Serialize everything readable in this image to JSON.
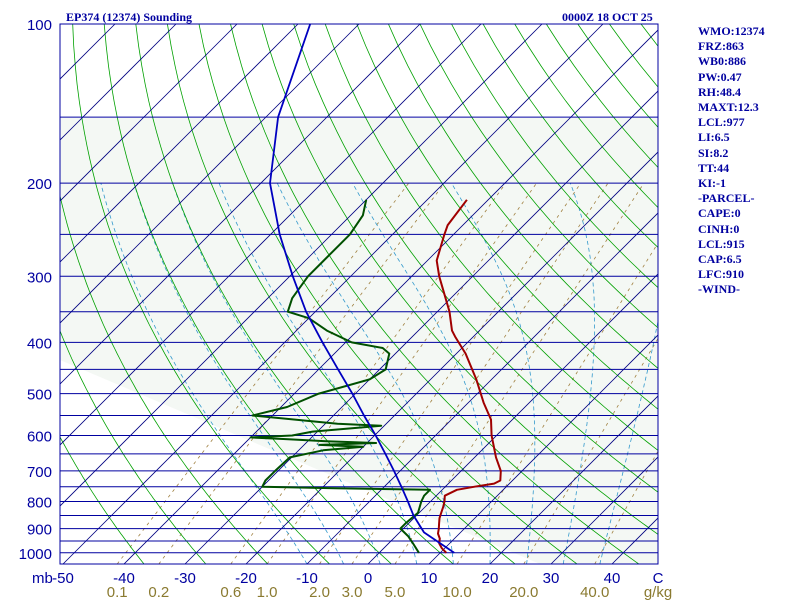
{
  "header": {
    "station": "EP374 (12374) Sounding",
    "time": "0000Z 18 OCT 25"
  },
  "indices": [
    "WMO:12374",
    "FRZ:863",
    "WB0:886",
    "PW:0.47",
    "RH:48.4",
    "MAXT:12.3",
    "LCL:977",
    "LI:6.5",
    "SI:8.2",
    "TT:44",
    "KI:-1",
    "-PARCEL-",
    "CAPE:0",
    "CINH:0",
    "LCL:915",
    "CAP:6.5",
    "LFC:910",
    "-WIND-"
  ],
  "colors": {
    "frame": "#0000a0",
    "isobar": "#0000a0",
    "isotherm": "#000080",
    "dry_adiabat": "#00a000",
    "moist_adiabat": "#3399cc",
    "mixing_ratio": "#a08040",
    "temperature": "#a00000",
    "dewpoint": "#005000",
    "parcel": "#0000c0",
    "background_shade": "#f4f8f4"
  },
  "chart_data": {
    "type": "skew-t log-p",
    "title": "EP374 (12374) Sounding",
    "pressure_unit": "mb",
    "pressure_range": [
      100,
      1050
    ],
    "isobars": [
      100,
      150,
      200,
      250,
      300,
      350,
      400,
      450,
      500,
      550,
      600,
      650,
      700,
      750,
      800,
      850,
      900,
      950,
      1000
    ],
    "pressure_labels": [
      "100",
      "200",
      "300",
      "400",
      "500",
      "600",
      "700",
      "800",
      "900",
      "1000"
    ],
    "pressure_label_values": [
      100,
      200,
      300,
      400,
      500,
      600,
      700,
      800,
      900,
      1000
    ],
    "temperature_unit": "C",
    "temperature_ticks": [
      -50,
      -40,
      -30,
      -20,
      -10,
      0,
      10,
      20,
      30,
      40
    ],
    "temperature_tick_labels": [
      "-50",
      "-40",
      "-30",
      "-20",
      "-10",
      "0",
      "10",
      "20",
      "30",
      "40"
    ],
    "mb_label": "mb",
    "c_label": "C",
    "mixing_ratio_unit": "g/kg",
    "mixing_ratio_ticks": [
      0.1,
      0.2,
      0.6,
      1.0,
      2.0,
      3.0,
      5.0,
      10.0,
      20.0,
      40.0
    ],
    "mixing_ratio_labels": [
      "0.1",
      "0.2",
      "0.6",
      "1.0",
      "2.0",
      "3.0",
      "5.0",
      "10.0",
      "20.0",
      "40.0"
    ],
    "series": [
      {
        "name": "temperature",
        "points": [
          [
            1000,
            11.0
          ],
          [
            980,
            9.5
          ],
          [
            960,
            8.3
          ],
          [
            940,
            7.6
          ],
          [
            920,
            6.5
          ],
          [
            900,
            5.8
          ],
          [
            880,
            5.0
          ],
          [
            860,
            4.2
          ],
          [
            840,
            3.6
          ],
          [
            820,
            3.0
          ],
          [
            800,
            2.3
          ],
          [
            780,
            1.4
          ],
          [
            760,
            2.4
          ],
          [
            750,
            4.8
          ],
          [
            740,
            7.5
          ],
          [
            730,
            8.0
          ],
          [
            700,
            6.5
          ],
          [
            660,
            3.5
          ],
          [
            600,
            -0.8
          ],
          [
            560,
            -3.5
          ],
          [
            520,
            -7.5
          ],
          [
            470,
            -12.5
          ],
          [
            420,
            -18.5
          ],
          [
            390,
            -23.0
          ],
          [
            380,
            -24.5
          ],
          [
            350,
            -28.0
          ],
          [
            300,
            -35.5
          ],
          [
            280,
            -38.5
          ],
          [
            250,
            -41.5
          ],
          [
            240,
            -42.5
          ],
          [
            215,
            -43.5
          ]
        ]
      },
      {
        "name": "dewpoint",
        "points": [
          [
            1000,
            6.5
          ],
          [
            960,
            4.0
          ],
          [
            930,
            2.0
          ],
          [
            900,
            -0.5
          ],
          [
            880,
            -0.5
          ],
          [
            840,
            -0.2
          ],
          [
            800,
            -1.5
          ],
          [
            780,
            -2.0
          ],
          [
            760,
            -2.0
          ],
          [
            755,
            -17.8
          ],
          [
            750,
            -30.0
          ],
          [
            730,
            -30.5
          ],
          [
            700,
            -30.5
          ],
          [
            660,
            -30.3
          ],
          [
            640,
            -26.0
          ],
          [
            630,
            -20.0
          ],
          [
            625,
            -27.5
          ],
          [
            620,
            -18.5
          ],
          [
            615,
            -27.0
          ],
          [
            610,
            -33.5
          ],
          [
            605,
            -40.0
          ],
          [
            600,
            -33.5
          ],
          [
            590,
            -30.8
          ],
          [
            575,
            -20.5
          ],
          [
            570,
            -28.0
          ],
          [
            550,
            -43.3
          ],
          [
            530,
            -39.0
          ],
          [
            500,
            -36.0
          ],
          [
            470,
            -30.0
          ],
          [
            450,
            -29.0
          ],
          [
            420,
            -31.0
          ],
          [
            410,
            -33.0
          ],
          [
            400,
            -39.0
          ],
          [
            380,
            -45.0
          ],
          [
            360,
            -50.0
          ],
          [
            350,
            -54.5
          ],
          [
            330,
            -56.0
          ],
          [
            300,
            -57.0
          ],
          [
            280,
            -57.0
          ],
          [
            250,
            -57.0
          ],
          [
            230,
            -58.0
          ],
          [
            215,
            -60.0
          ]
        ]
      },
      {
        "name": "parcel",
        "points": [
          [
            1000,
            12.3
          ],
          [
            915,
            4.0
          ],
          [
            850,
            -0.5
          ],
          [
            800,
            -3.7
          ],
          [
            750,
            -7.2
          ],
          [
            700,
            -11.0
          ],
          [
            650,
            -15.2
          ],
          [
            600,
            -19.8
          ],
          [
            550,
            -25.0
          ],
          [
            500,
            -30.5
          ],
          [
            450,
            -36.8
          ],
          [
            400,
            -43.8
          ],
          [
            350,
            -51.5
          ],
          [
            300,
            -59.5
          ],
          [
            250,
            -68.5
          ],
          [
            200,
            -78.5
          ],
          [
            150,
            -88.0
          ],
          [
            100,
            -98.0
          ]
        ]
      }
    ]
  }
}
